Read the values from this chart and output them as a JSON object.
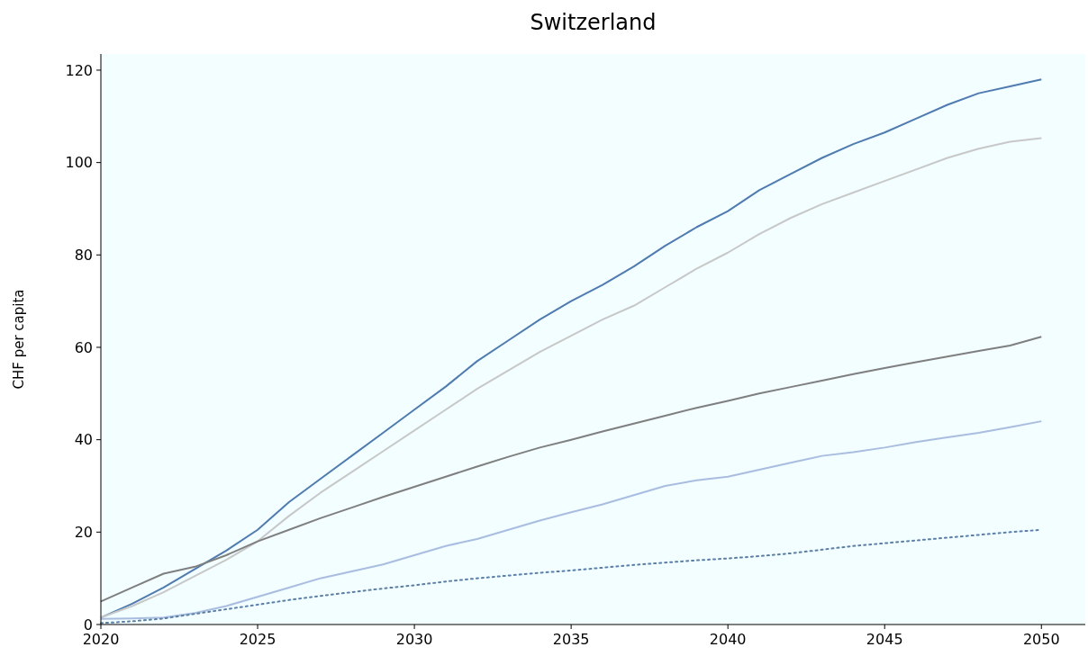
{
  "chart_data": {
    "type": "line",
    "title": "Switzerland",
    "ylabel": "CHF per capita",
    "x": [
      2020,
      2021,
      2022,
      2023,
      2024,
      2025,
      2026,
      2027,
      2028,
      2029,
      2030,
      2031,
      2032,
      2033,
      2034,
      2035,
      2036,
      2037,
      2038,
      2039,
      2040,
      2041,
      2042,
      2043,
      2044,
      2045,
      2046,
      2047,
      2048,
      2049,
      2050
    ],
    "series": [
      {
        "color": "#4f7bb0",
        "line_style": "solid",
        "values": [
          1.5,
          4.5,
          8,
          12,
          16,
          20.5,
          26.5,
          31.5,
          36.5,
          41.5,
          46.5,
          51.5,
          57,
          61.5,
          66,
          70,
          73.5,
          77.5,
          82,
          86,
          89.5,
          94,
          97.5,
          101,
          104,
          106.5,
          109.5,
          112.5,
          115,
          116.5,
          118
        ]
      },
      {
        "color": "#c8c8c8",
        "line_style": "solid",
        "values": [
          1.5,
          4,
          7,
          10.5,
          14,
          18,
          23.5,
          28.5,
          33,
          37.5,
          42,
          46.5,
          51,
          55,
          59,
          62.5,
          66,
          69,
          73,
          77,
          80.5,
          84.5,
          88,
          91,
          93.5,
          96,
          98.5,
          101,
          103,
          104.5,
          105.3
        ]
      },
      {
        "color": "#7f7f7f",
        "line_style": "solid",
        "values": [
          5,
          8,
          11,
          12.5,
          15,
          18,
          20.5,
          23,
          25.3,
          27.6,
          29.8,
          32,
          34.2,
          36.3,
          38.3,
          40,
          41.8,
          43.5,
          45.2,
          46.9,
          48.4,
          50,
          51.4,
          52.8,
          54.2,
          55.5,
          56.8,
          58,
          59.2,
          60.4,
          62.3
        ]
      },
      {
        "color": "#a9bde0",
        "line_style": "solid",
        "values": [
          1.2,
          1.3,
          1.5,
          2.5,
          4,
          6,
          8,
          10,
          11.5,
          13,
          15,
          17,
          18.5,
          20.5,
          22.5,
          24.3,
          26,
          28,
          30,
          31.2,
          32,
          33.5,
          35,
          36.5,
          37.3,
          38.3,
          39.5,
          40.5,
          41.5,
          42.7,
          44
        ]
      },
      {
        "color": "#5b7fa6",
        "line_style": "dotted",
        "values": [
          0.3,
          0.7,
          1.3,
          2.3,
          3.3,
          4.3,
          5.3,
          6.2,
          7,
          7.8,
          8.5,
          9.3,
          10,
          10.6,
          11.2,
          11.7,
          12.3,
          12.9,
          13.4,
          13.9,
          14.3,
          14.8,
          15.4,
          16.2,
          17,
          17.6,
          18.2,
          18.8,
          19.4,
          20,
          20.5
        ]
      }
    ],
    "xlim": [
      2020,
      2051.4
    ],
    "xticks": [
      2020,
      2025,
      2030,
      2035,
      2040,
      2045,
      2050
    ],
    "ylim": [
      0,
      123.5
    ],
    "yticks": [
      0,
      20,
      40,
      60,
      80,
      100,
      120
    ],
    "grid": false
  }
}
